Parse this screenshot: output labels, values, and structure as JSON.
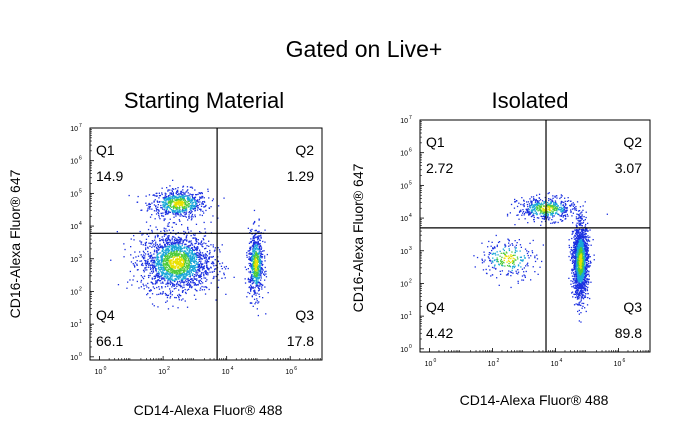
{
  "figure": {
    "title": "Gated on Live+"
  },
  "chart_data": [
    {
      "type": "scatter",
      "title": "Starting Material",
      "xlabel": "CD14-Alexa Fluor® 488",
      "ylabel": "CD16-Alexa Fluor® 647",
      "x_scale": "log",
      "y_scale": "log",
      "xlim": [
        0.5,
        10000000
      ],
      "ylim": [
        0.8,
        10000000
      ],
      "x_ticks": [
        1,
        100,
        10000,
        1000000
      ],
      "x_tick_labels": [
        "10",
        "10",
        "10",
        "10"
      ],
      "x_tick_exponents": [
        "0",
        "2",
        "4",
        "6"
      ],
      "y_ticks": [
        1,
        10,
        100,
        1000,
        10000,
        100000,
        1000000,
        10000000
      ],
      "y_tick_labels": [
        "10",
        "10",
        "10",
        "10",
        "10",
        "10",
        "10",
        "10"
      ],
      "y_tick_exponents": [
        "0",
        "1",
        "2",
        "3",
        "4",
        "5",
        "6",
        "7"
      ],
      "gate": {
        "x": 5000,
        "y": 6000
      },
      "quadrants": [
        {
          "name": "Q1",
          "percent": "14.9"
        },
        {
          "name": "Q2",
          "percent": "1.29"
        },
        {
          "name": "Q3",
          "percent": "17.8"
        },
        {
          "name": "Q4",
          "percent": "66.1"
        }
      ],
      "populations": [
        {
          "x": 300,
          "y": 50000,
          "sx": 0.45,
          "sy": 0.22,
          "n": 700
        },
        {
          "x": 250,
          "y": 800,
          "sx": 0.55,
          "sy": 0.45,
          "n": 1900
        },
        {
          "x": 80000,
          "y": 700,
          "sx": 0.12,
          "sy": 0.5,
          "n": 650
        }
      ]
    },
    {
      "type": "scatter",
      "title": "Isolated",
      "xlabel": "CD14-Alexa Fluor® 488",
      "ylabel": "CD16-Alexa Fluor® 647",
      "x_scale": "log",
      "y_scale": "log",
      "xlim": [
        0.5,
        10000000
      ],
      "ylim": [
        0.8,
        10000000
      ],
      "x_ticks": [
        1,
        100,
        10000,
        1000000
      ],
      "x_tick_labels": [
        "10",
        "10",
        "10",
        "10"
      ],
      "x_tick_exponents": [
        "0",
        "2",
        "4",
        "6"
      ],
      "y_ticks": [
        1,
        10,
        100,
        1000,
        10000,
        100000,
        1000000,
        10000000
      ],
      "y_tick_labels": [
        "10",
        "10",
        "10",
        "10",
        "10",
        "10",
        "10",
        "10"
      ],
      "y_tick_exponents": [
        "0",
        "1",
        "2",
        "3",
        "4",
        "5",
        "6",
        "7"
      ],
      "gate": {
        "x": 5000,
        "y": 5000
      },
      "quadrants": [
        {
          "name": "Q1",
          "percent": "2.72"
        },
        {
          "name": "Q2",
          "percent": "3.07"
        },
        {
          "name": "Q3",
          "percent": "89.8"
        },
        {
          "name": "Q4",
          "percent": "4.42"
        }
      ],
      "populations": [
        {
          "x": 5000,
          "y": 20000,
          "sx": 0.45,
          "sy": 0.18,
          "n": 500
        },
        {
          "x": 300,
          "y": 600,
          "sx": 0.45,
          "sy": 0.3,
          "n": 250
        },
        {
          "x": 60000,
          "y": 500,
          "sx": 0.12,
          "sy": 0.55,
          "n": 1800
        }
      ]
    }
  ]
}
